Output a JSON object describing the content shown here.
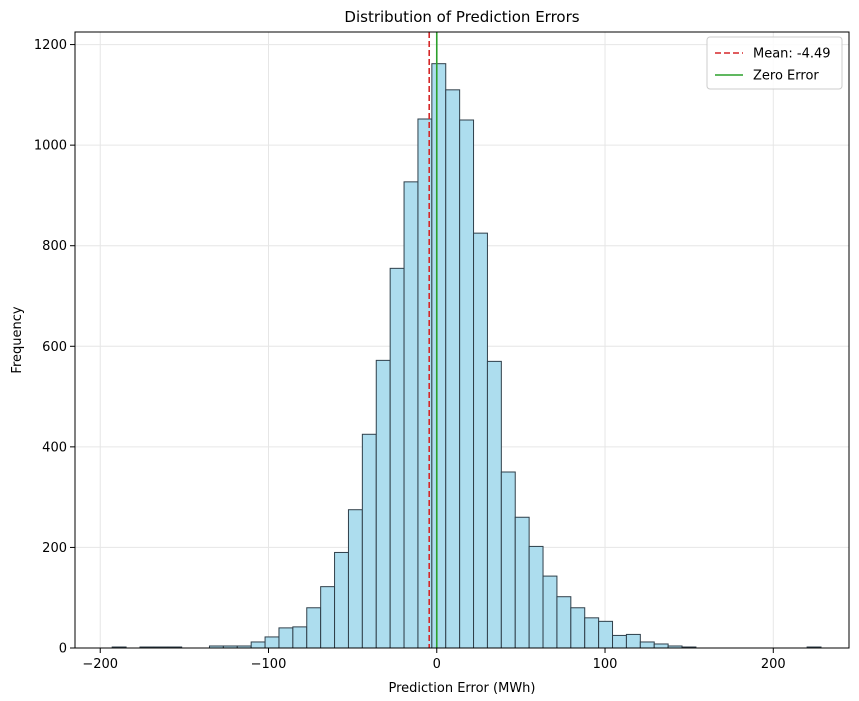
{
  "chart_data": {
    "type": "bar",
    "title": "Distribution of Prediction Errors",
    "xlabel": "Prediction Error (MWh)",
    "ylabel": "Frequency",
    "xlim": [
      -215,
      245
    ],
    "ylim": [
      0,
      1225
    ],
    "xticks": [
      -200,
      -100,
      0,
      100,
      200
    ],
    "yticks": [
      0,
      200,
      400,
      600,
      800,
      1000,
      1200
    ],
    "grid": true,
    "bar_fill": "#ADDDEE",
    "bar_edge": "#2F3F4A",
    "bins": {
      "start": -192.9,
      "width": 8.26,
      "values": [
        2,
        0,
        2,
        2,
        2,
        0,
        0,
        4,
        4,
        4,
        12,
        22,
        40,
        42,
        80,
        122,
        190,
        275,
        425,
        572,
        755,
        927,
        1052,
        1162,
        1110,
        1050,
        825,
        570,
        350,
        260,
        202,
        143,
        102,
        80,
        60,
        53,
        25,
        27,
        12,
        8,
        4,
        2,
        0,
        0,
        0,
        0,
        0,
        0,
        0,
        0,
        2
      ]
    },
    "reference_lines": [
      {
        "name": "Mean: -4.49",
        "x": -4.49,
        "color": "#D62728",
        "style": "dashed"
      },
      {
        "name": "Zero Error",
        "x": 0,
        "color": "#2CA02C",
        "style": "solid"
      }
    ],
    "legend": {
      "position": "top-right",
      "entries": [
        "Mean: -4.49",
        "Zero Error"
      ]
    }
  }
}
